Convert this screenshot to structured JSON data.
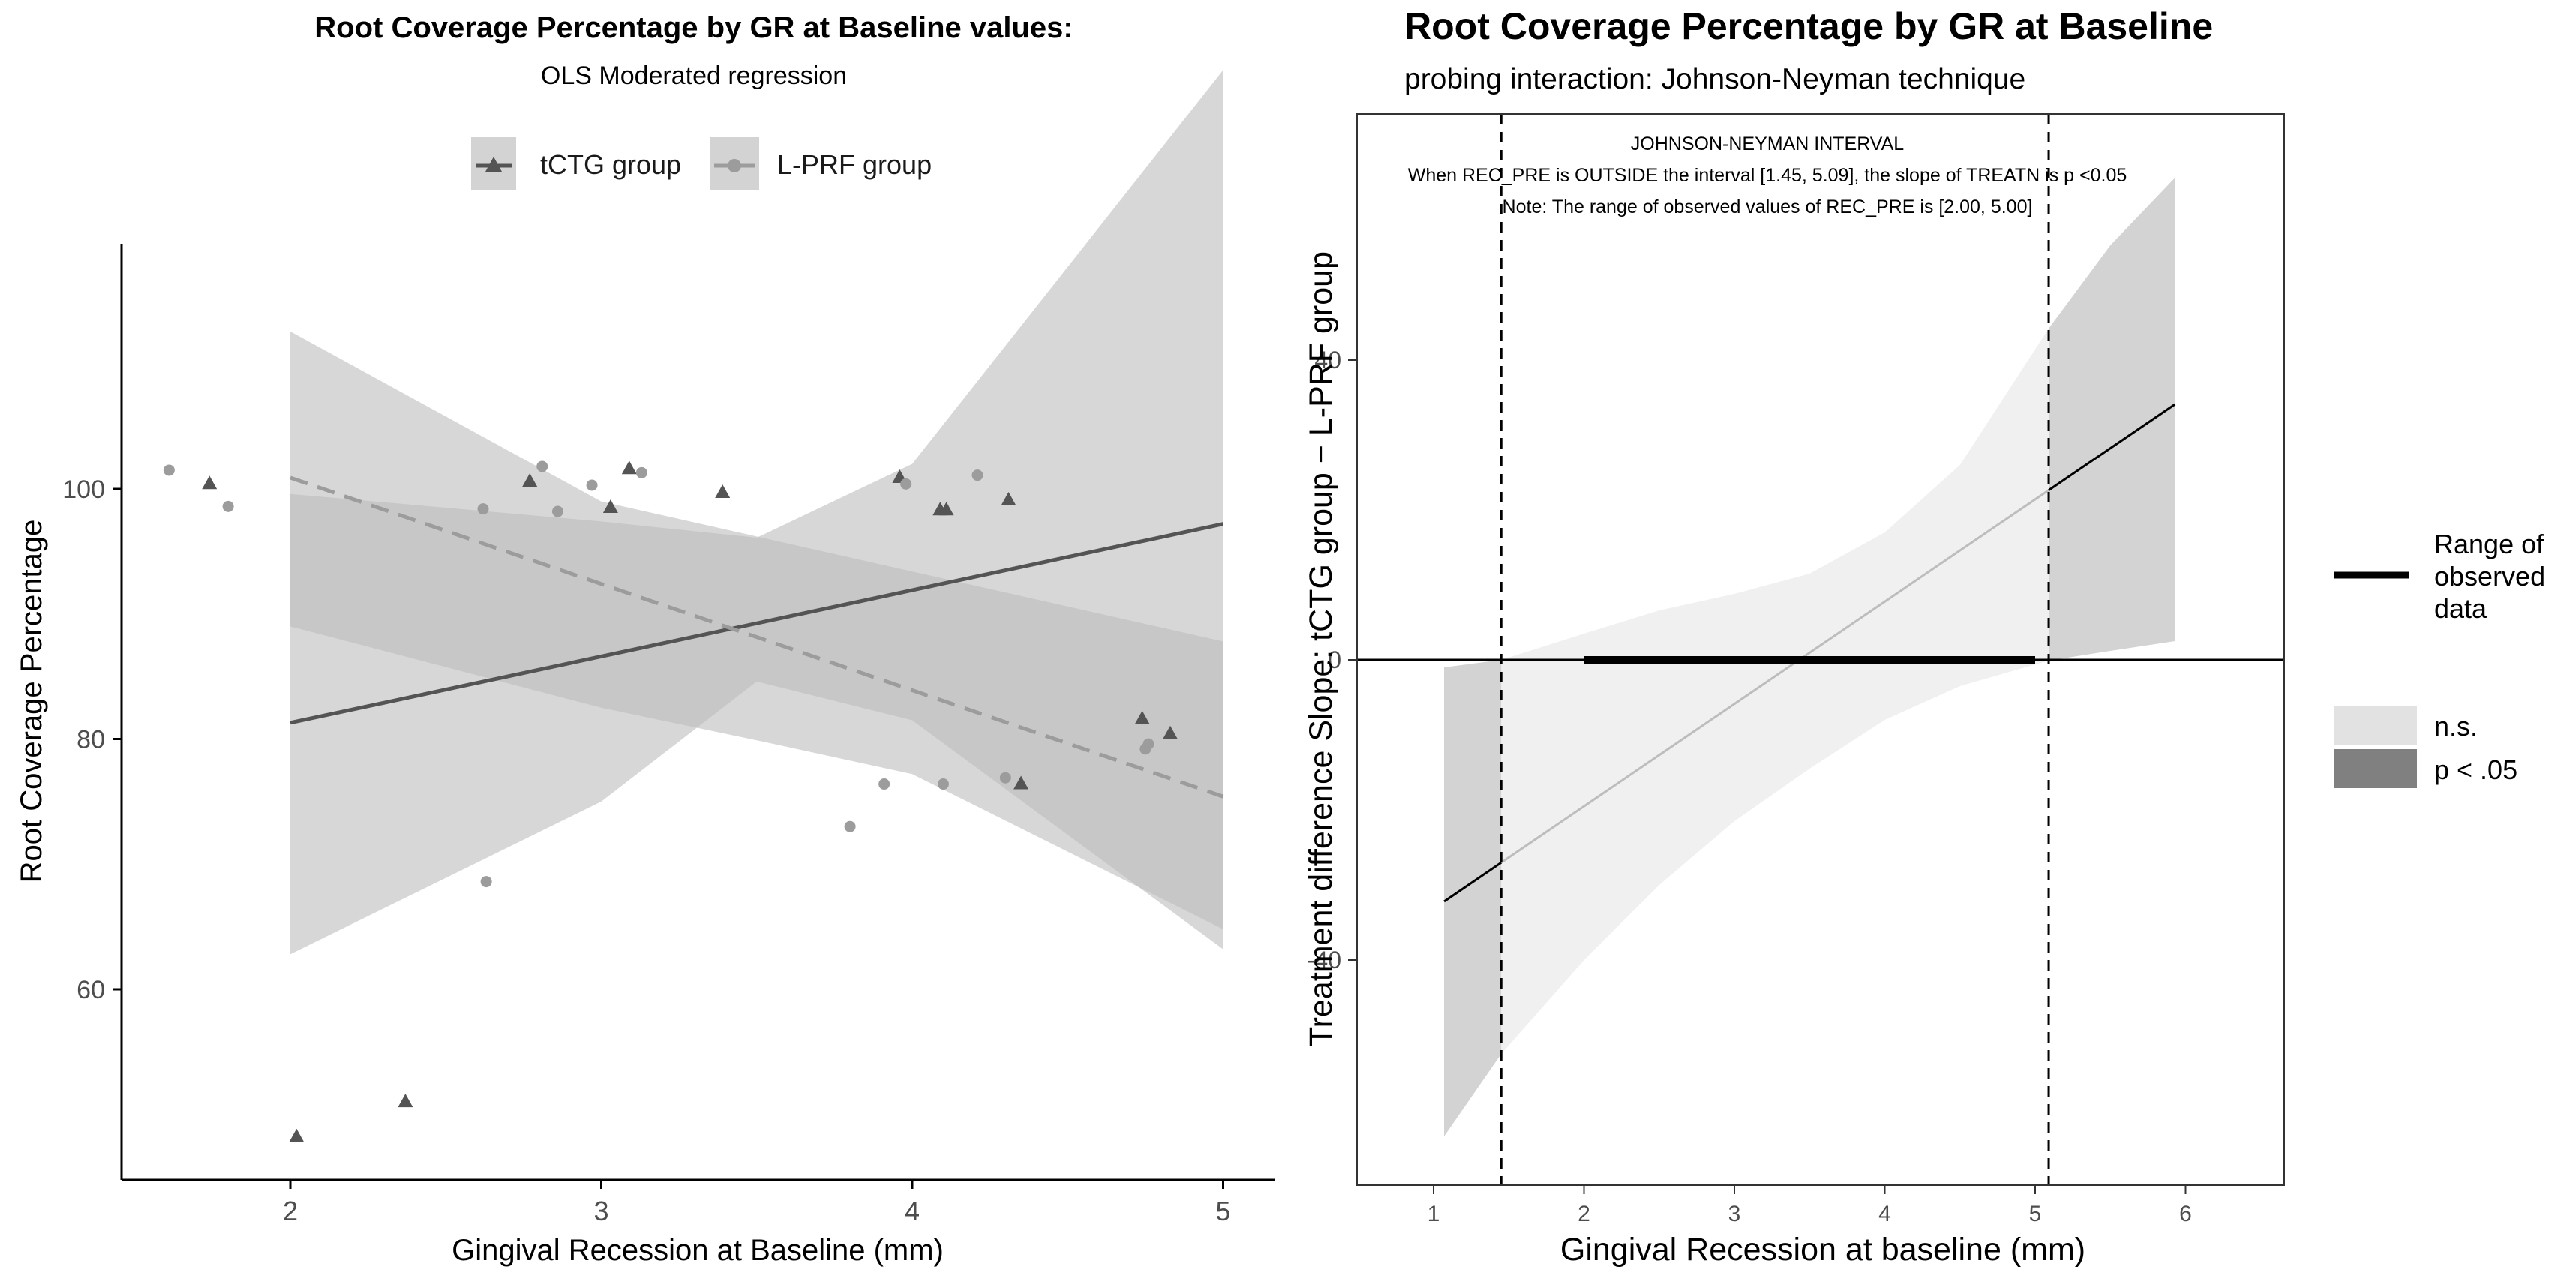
{
  "charts": [
    {
      "title": "Root Coverage Percentage by GR at Baseline values:",
      "subtitle": "OLS Moderated regression",
      "xlabel": "Gingival Recession at Baseline (mm)",
      "ylabel": "Root Coverage Percentage",
      "legend": {
        "placement": "top"
      }
    },
    {
      "title": "Root Coverage Percentage by GR at Baseline",
      "subtitle": "probing interaction: Johnson-Neyman technique",
      "xlabel": "Gingival Recession at baseline (mm)",
      "ylabel": "Treatment difference Slope: tCTG group − L-PRF group",
      "annotation": [
        "JOHNSON-NEYMAN INTERVAL",
        "When REC_PRE is OUTSIDE the interval [1.45, 5.09], the slope of TREATN is p <0.05",
        "Note: The range of observed values of REC_PRE is [2.00, 5.00]"
      ],
      "legend": {
        "range_label": [
          "Range of",
          "observed",
          "data"
        ],
        "ns_label": "n.s.",
        "sig_label": "p < .05"
      }
    }
  ],
  "chart_data": [
    {
      "type": "scatter",
      "title": "Root Coverage Percentage by GR at Baseline values:",
      "subtitle": "OLS Moderated regression",
      "xlabel": "Gingival Recession at Baseline (mm)",
      "ylabel": "Root Coverage Percentage",
      "xlim": [
        1.5,
        5.2
      ],
      "ylim": [
        46,
        120
      ],
      "x_ticks": [
        2,
        3,
        4,
        5
      ],
      "y_ticks": [
        60,
        80,
        100
      ],
      "grid": false,
      "legend_position": "top",
      "colors": {
        "tctg": "#545454",
        "lprf": "#9c9c9c",
        "band": "#bdbdbd"
      },
      "series": [
        {
          "name": "tCTG group",
          "marker": "triangle",
          "line": "solid",
          "fit": {
            "x": [
              2,
              5
            ],
            "y": [
              81.3,
              97.2
            ]
          },
          "ci": {
            "x": [
              2,
              3,
              3.5,
              4,
              5
            ],
            "lower": [
              62.8,
              75,
              84.6,
              81.5,
              63.2
            ],
            "upper": [
              99.6,
              97.4,
              96.1,
              102,
              133.5
            ]
          },
          "points": [
            [
              1.74,
              100.4
            ],
            [
              2.02,
              48.2
            ],
            [
              2.37,
              51.0
            ],
            [
              2.77,
              100.6
            ],
            [
              3.03,
              98.5
            ],
            [
              3.09,
              101.6
            ],
            [
              3.39,
              99.7
            ],
            [
              3.96,
              100.9
            ],
            [
              4.09,
              98.3
            ],
            [
              4.11,
              98.3
            ],
            [
              4.31,
              99.1
            ],
            [
              4.35,
              76.4
            ],
            [
              4.74,
              81.6
            ],
            [
              4.83,
              80.4
            ]
          ]
        },
        {
          "name": "L-PRF group",
          "marker": "circle",
          "line": "dashed",
          "fit": {
            "x": [
              2,
              5
            ],
            "y": [
              100.9,
              75.4
            ]
          },
          "ci": {
            "x": [
              2,
              3,
              3.5,
              4,
              5
            ],
            "lower": [
              89.0,
              82.5,
              79.9,
              77.2,
              64.8
            ],
            "upper": [
              112.6,
              99.0,
              96.2,
              93.4,
              87.8
            ]
          },
          "points": [
            [
              1.61,
              101.5
            ],
            [
              1.8,
              98.6
            ],
            [
              2.62,
              98.4
            ],
            [
              2.63,
              68.6
            ],
            [
              2.81,
              101.8
            ],
            [
              2.86,
              98.2
            ],
            [
              2.97,
              100.3
            ],
            [
              3.13,
              101.3
            ],
            [
              3.8,
              73.0
            ],
            [
              3.91,
              76.4
            ],
            [
              3.98,
              100.4
            ],
            [
              4.1,
              76.4
            ],
            [
              4.21,
              101.1
            ],
            [
              4.3,
              76.9
            ],
            [
              4.75,
              79.2
            ],
            [
              4.76,
              79.6
            ]
          ]
        }
      ]
    },
    {
      "type": "line",
      "title": "Root Coverage Percentage by GR at Baseline",
      "subtitle": "probing interaction: Johnson-Neyman technique",
      "xlabel": "Gingival Recession at baseline (mm)",
      "ylabel": "Treatment difference Slope: tCTG group − L-PRF group",
      "xlim": [
        0.9,
        6.2
      ],
      "ylim": [
        -70,
        73
      ],
      "x_ticks": [
        1,
        2,
        3,
        4,
        5,
        6
      ],
      "y_ticks": [
        -40,
        0,
        40
      ],
      "grid": false,
      "jn_interval": [
        1.45,
        5.09
      ],
      "observed_range": [
        2.0,
        5.0
      ],
      "slope_line": {
        "x": [
          1.07,
          5.93
        ],
        "y": [
          -32.2,
          34.1
        ]
      },
      "confidence_band": {
        "x": [
          1.07,
          1.45,
          2.0,
          2.5,
          3.0,
          3.5,
          4.0,
          4.5,
          5.09,
          5.5,
          5.93
        ],
        "lower": [
          -63.5,
          -52.5,
          -40.0,
          -30.0,
          -21.5,
          -14.5,
          -8.0,
          -3.5,
          -0.1,
          1.2,
          2.5
        ],
        "upper": [
          -1.0,
          0.0,
          3.5,
          6.6,
          8.8,
          11.5,
          17.0,
          26.0,
          44.2,
          55.3,
          64.3
        ]
      },
      "colors": {
        "ns": "#f0f0f0",
        "sig": "#d3d3d3",
        "line_ns": "#bdbdbd",
        "line_sig": "#000000",
        "legend_ns": "#e2e2e2",
        "legend_sig": "#808080"
      },
      "legend_position": "right"
    }
  ]
}
